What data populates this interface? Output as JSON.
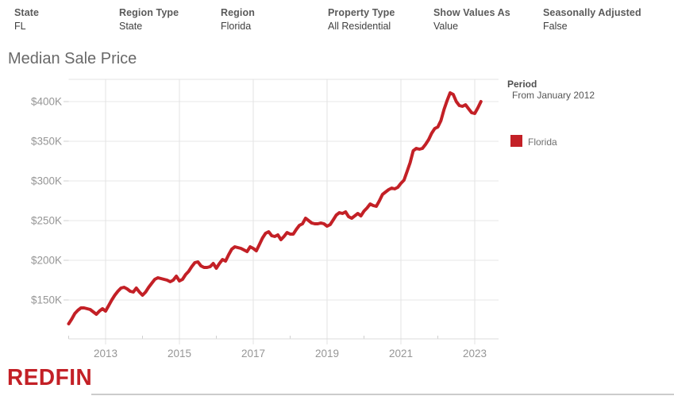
{
  "filters": [
    {
      "label": "State",
      "value": "FL"
    },
    {
      "label": "Region Type",
      "value": "State"
    },
    {
      "label": "Region",
      "value": "Florida"
    },
    {
      "label": "Property Type",
      "value": "All Residential"
    },
    {
      "label": "Show Values As",
      "value": "Value"
    },
    {
      "label": "Seasonally Adjusted",
      "value": "False"
    }
  ],
  "title": "Median Sale Price",
  "legend": {
    "period_label": "Period",
    "period_value": "From January 2012",
    "series_label": "Florida"
  },
  "footer": {
    "logo_text": "REDFIN",
    "logo_color": "#c32026"
  },
  "chart_data": {
    "type": "line",
    "title": "Median Sale Price",
    "grid": true,
    "legend_position": "right",
    "x_axis": {
      "unit": "month",
      "start": "2012-01",
      "end": "2023-03",
      "frequency": "monthly",
      "tick_years": [
        2013,
        2015,
        2017,
        2019,
        2021,
        2023
      ],
      "tick_labels": [
        "2013",
        "2015",
        "2017",
        "2019",
        "2021",
        "2023"
      ],
      "minor_tick_years": [
        2012,
        2014,
        2016,
        2018,
        2020,
        2022
      ],
      "range": [
        2012,
        2023.65
      ]
    },
    "y_axis": {
      "unit": "USD thousands",
      "tick_values": [
        150,
        200,
        250,
        300,
        350,
        400
      ],
      "tick_labels": [
        "$150K",
        "$200K",
        "$250K",
        "$300K",
        "$350K",
        "$400K"
      ],
      "range": [
        98,
        428
      ]
    },
    "series": [
      {
        "name": "Florida",
        "color": "#c32026",
        "start": "2012-01",
        "frequency": "monthly",
        "values_unit": "USD thousands",
        "values": [
          120,
          126,
          133,
          137,
          140,
          140,
          139,
          138,
          135,
          132,
          136,
          139,
          136,
          143,
          150,
          156,
          161,
          165,
          166,
          164,
          161,
          160,
          165,
          160,
          156,
          160,
          166,
          171,
          176,
          178,
          177,
          176,
          175,
          173,
          175,
          180,
          174,
          176,
          182,
          186,
          192,
          197,
          198,
          193,
          191,
          191,
          192,
          196,
          190,
          196,
          201,
          199,
          207,
          214,
          217,
          216,
          215,
          213,
          211,
          217,
          215,
          212,
          220,
          228,
          234,
          236,
          231,
          230,
          232,
          226,
          230,
          235,
          233,
          233,
          239,
          244,
          246,
          253,
          250,
          247,
          246,
          246,
          247,
          246,
          243,
          245,
          251,
          257,
          260,
          259,
          261,
          255,
          253,
          256,
          259,
          256,
          262,
          266,
          271,
          269,
          268,
          275,
          283,
          286,
          289,
          291,
          290,
          292,
          297,
          301,
          312,
          323,
          338,
          341,
          340,
          341,
          346,
          352,
          360,
          366,
          368,
          376,
          390,
          401,
          411,
          409,
          400,
          395,
          394,
          396,
          391,
          386,
          385,
          392,
          400
        ]
      }
    ]
  }
}
